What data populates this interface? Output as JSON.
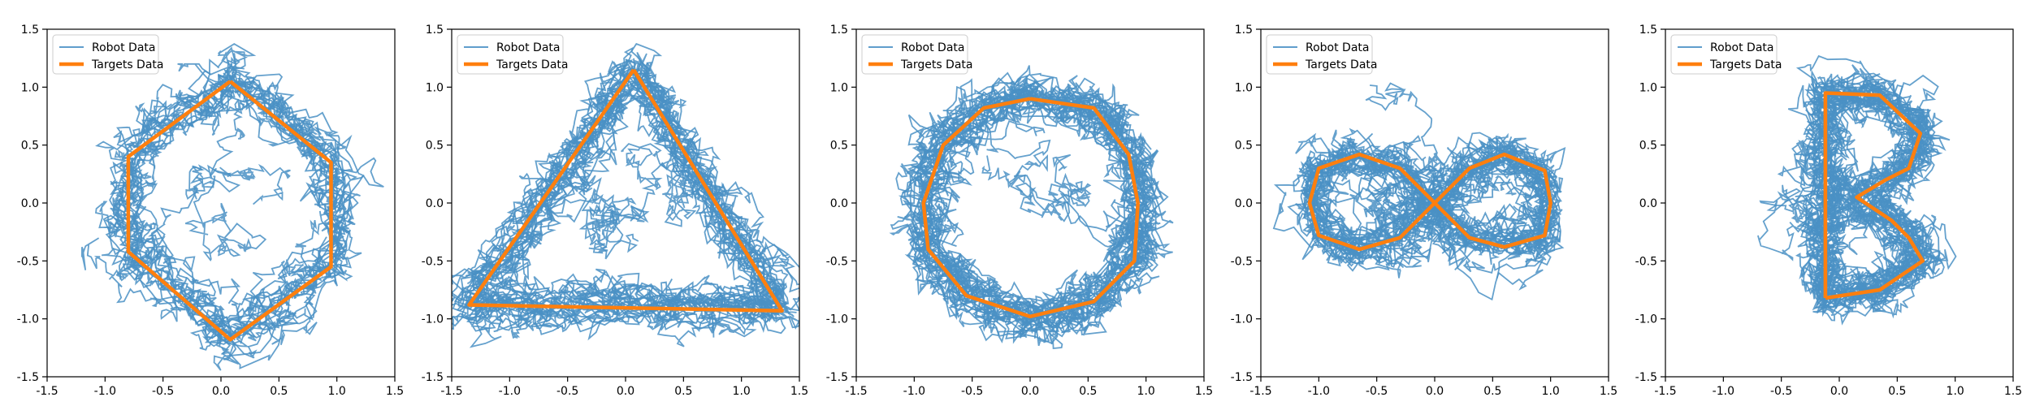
{
  "chart_data": [
    {
      "type": "line",
      "title": "",
      "xlabel": "",
      "ylabel": "",
      "xlim": [
        -1.5,
        1.5
      ],
      "ylim": [
        -1.5,
        1.5
      ],
      "xticks": [
        "-1.5",
        "-1.0",
        "-0.5",
        "0.0",
        "0.5",
        "1.0",
        "1.5"
      ],
      "yticks": [
        "-1.5",
        "-1.0",
        "-0.5",
        "0.0",
        "0.5",
        "1.0",
        "1.5"
      ],
      "legend": "upper left",
      "series": [
        {
          "name": "Robot Data",
          "color": "#4a90c4",
          "style": "noisy trajectories",
          "shape": "hexagon"
        },
        {
          "name": "Targets Data",
          "color": "#ff7f0e",
          "x": [
            0.08,
            0.95,
            0.95,
            0.08,
            -0.8,
            -0.8,
            0.08
          ],
          "y": [
            1.05,
            0.35,
            -0.55,
            -1.18,
            -0.42,
            0.4,
            1.05
          ]
        }
      ]
    },
    {
      "type": "line",
      "title": "",
      "xlabel": "",
      "ylabel": "",
      "xlim": [
        -1.5,
        1.5
      ],
      "ylim": [
        -1.5,
        1.5
      ],
      "xticks": [
        "-1.5",
        "-1.0",
        "-0.5",
        "0.0",
        "0.5",
        "1.0",
        "1.5"
      ],
      "yticks": [
        "-1.5",
        "-1.0",
        "-0.5",
        "0.0",
        "0.5",
        "1.0",
        "1.5"
      ],
      "legend": "upper left",
      "series": [
        {
          "name": "Robot Data",
          "color": "#4a90c4",
          "style": "noisy trajectories",
          "shape": "triangle"
        },
        {
          "name": "Targets Data",
          "color": "#ff7f0e",
          "x": [
            0.07,
            1.35,
            -1.35,
            0.07
          ],
          "y": [
            1.15,
            -0.93,
            -0.88,
            1.15
          ]
        }
      ]
    },
    {
      "type": "line",
      "title": "",
      "xlabel": "",
      "ylabel": "",
      "xlim": [
        -1.5,
        1.5
      ],
      "ylim": [
        -1.5,
        1.5
      ],
      "xticks": [
        "-1.5",
        "-1.0",
        "-0.5",
        "0.0",
        "0.5",
        "1.0",
        "1.5"
      ],
      "yticks": [
        "-1.5",
        "-1.0",
        "-0.5",
        "0.0",
        "0.5",
        "1.0",
        "1.5"
      ],
      "legend": "upper left",
      "series": [
        {
          "name": "Robot Data",
          "color": "#4a90c4",
          "style": "noisy trajectories",
          "shape": "circle"
        },
        {
          "name": "Targets Data",
          "color": "#ff7f0e",
          "x": [
            0.0,
            0.55,
            0.85,
            0.93,
            0.9,
            0.55,
            0.0,
            -0.55,
            -0.88,
            -0.92,
            -0.75,
            -0.4,
            0.0
          ],
          "y": [
            0.9,
            0.82,
            0.42,
            0.0,
            -0.5,
            -0.85,
            -0.98,
            -0.8,
            -0.4,
            0.0,
            0.5,
            0.82,
            0.9
          ]
        }
      ]
    },
    {
      "type": "line",
      "title": "",
      "xlabel": "",
      "ylabel": "",
      "xlim": [
        -1.5,
        1.5
      ],
      "ylim": [
        -1.5,
        1.5
      ],
      "xticks": [
        "-1.5",
        "-1.0",
        "-0.5",
        "0.0",
        "0.5",
        "1.0",
        "1.5"
      ],
      "yticks": [
        "-1.5",
        "-1.0",
        "-0.5",
        "0.0",
        "0.5",
        "1.0",
        "1.5"
      ],
      "legend": "upper left",
      "series": [
        {
          "name": "Robot Data",
          "color": "#4a90c4",
          "style": "noisy trajectories",
          "shape": "figure-eight"
        },
        {
          "name": "Targets Data",
          "color": "#ff7f0e",
          "x": [
            0.0,
            0.3,
            0.6,
            0.95,
            1.0,
            0.95,
            0.6,
            0.3,
            0.0,
            -0.3,
            -0.65,
            -1.0,
            -1.08,
            -1.0,
            -0.65,
            -0.3,
            0.0
          ],
          "y": [
            0.0,
            0.3,
            0.42,
            0.28,
            0.0,
            -0.28,
            -0.38,
            -0.3,
            0.0,
            0.3,
            0.42,
            0.3,
            0.0,
            -0.28,
            -0.4,
            -0.3,
            0.0
          ]
        }
      ]
    },
    {
      "type": "line",
      "title": "",
      "xlabel": "",
      "ylabel": "",
      "xlim": [
        -1.5,
        1.5
      ],
      "ylim": [
        -1.5,
        1.5
      ],
      "xticks": [
        "-1.5",
        "-1.0",
        "-0.5",
        "0.0",
        "0.5",
        "1.0",
        "1.5"
      ],
      "yticks": [
        "-1.5",
        "-1.0",
        "-0.5",
        "0.0",
        "0.5",
        "1.0",
        "1.5"
      ],
      "legend": "upper left",
      "series": [
        {
          "name": "Robot Data",
          "color": "#4a90c4",
          "style": "noisy trajectories",
          "shape": "letter-B"
        },
        {
          "name": "Targets Data",
          "color": "#ff7f0e",
          "x": [
            -0.12,
            -0.12,
            0.35,
            0.7,
            0.6,
            0.4,
            0.15,
            0.45,
            0.6,
            0.72,
            0.35,
            -0.12
          ],
          "y": [
            -0.82,
            0.95,
            0.93,
            0.6,
            0.3,
            0.2,
            0.05,
            -0.15,
            -0.3,
            -0.5,
            -0.75,
            -0.82
          ]
        }
      ]
    }
  ]
}
